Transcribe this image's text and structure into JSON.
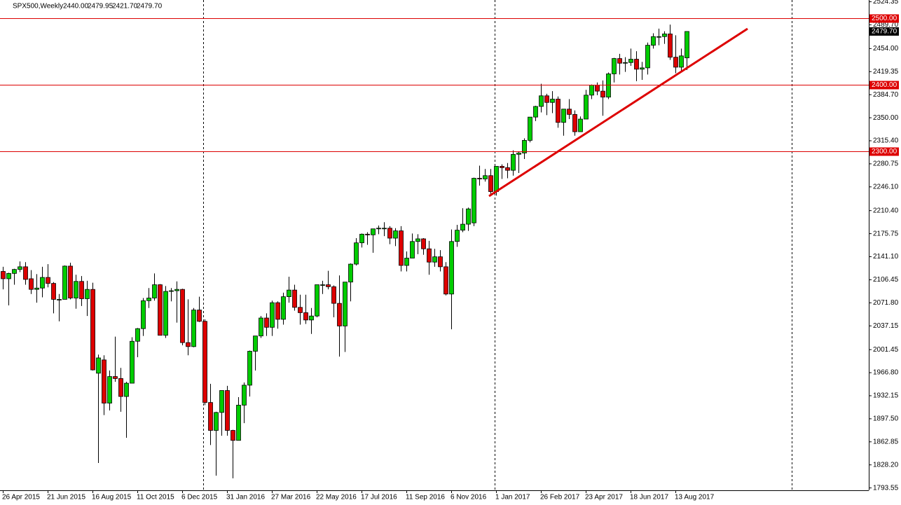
{
  "chart_data": {
    "type": "candlestick",
    "title": "SPX500,Weekly",
    "header_values": [
      "2440.00",
      "2479.95",
      "2421.70",
      "2479.70"
    ],
    "categories": [
      "26 Apr 2015",
      null,
      null,
      null,
      null,
      null,
      null,
      null,
      "21 Jun 2015",
      null,
      null,
      null,
      null,
      null,
      null,
      null,
      "16 Aug 2015",
      null,
      null,
      null,
      null,
      null,
      null,
      null,
      "11 Oct 2015",
      null,
      null,
      null,
      null,
      null,
      null,
      null,
      "6 Dec 2015",
      null,
      null,
      null,
      null,
      null,
      null,
      null,
      "31 Jan 2016",
      null,
      null,
      null,
      null,
      null,
      null,
      null,
      "27 Mar 2016",
      null,
      null,
      null,
      null,
      null,
      null,
      null,
      "22 May 2016",
      null,
      null,
      null,
      null,
      null,
      null,
      null,
      "17 Jul 2016",
      null,
      null,
      null,
      null,
      null,
      null,
      null,
      "11 Sep 2016",
      null,
      null,
      null,
      null,
      null,
      null,
      null,
      "6 Nov 2016",
      null,
      null,
      null,
      null,
      null,
      null,
      null,
      "1 Jan 2017",
      null,
      null,
      null,
      null,
      null,
      null,
      null,
      "26 Feb 2017",
      null,
      null,
      null,
      null,
      null,
      null,
      null,
      "23 Apr 2017",
      null,
      null,
      null,
      null,
      null,
      null,
      null,
      "18 Jun 2017",
      null,
      null,
      null,
      null,
      null,
      null,
      null,
      "13 Aug 2017",
      null,
      null
    ],
    "open": [
      2119,
      2108,
      2116,
      2122,
      2126,
      2108,
      2092,
      2094,
      2110,
      2101,
      2077,
      2077,
      2127,
      2079,
      2104,
      2078,
      2092,
      1966,
      1986,
      1921,
      1961,
      1958,
      1931,
      1951,
      2014,
      2033,
      2075,
      2079,
      2099,
      2023,
      2089,
      2090,
      2092,
      2012,
      2006,
      2061,
      2044,
      1922,
      1880,
      1907,
      1940,
      1880,
      1865,
      1918,
      1948,
      1999,
      2022,
      2049,
      2035,
      2072,
      2047,
      2081,
      2091,
      2065,
      2057,
      2046,
      2052,
      2099,
      2099,
      2096,
      2071,
      2037,
      2103,
      2130,
      2162,
      2175,
      2174,
      2183,
      2184,
      2184,
      2169,
      2180,
      2128,
      2139,
      2164,
      2168,
      2153,
      2133,
      2141,
      2126,
      2085,
      2164,
      2181,
      2190,
      2192,
      2259,
      2258,
      2263,
      2239,
      2277,
      2275,
      2271,
      2295,
      2297,
      2316,
      2351,
      2367,
      2383,
      2373,
      2378,
      2343,
      2363,
      2355,
      2329,
      2348,
      2384,
      2399,
      2390,
      2381,
      2416,
      2439,
      2432,
      2433,
      2438,
      2423,
      2425,
      2459,
      2472,
      2472,
      2476,
      2441,
      2426,
      2440
    ],
    "high": [
      2126,
      2117,
      2123,
      2134,
      2133,
      2121,
      2115,
      2126,
      2130,
      2103,
      2085,
      2128,
      2132,
      2114,
      2112,
      2105,
      2102,
      1994,
      1993,
      1970,
      2021,
      1974,
      1953,
      2020,
      2034,
      2079,
      2094,
      2116,
      2100,
      2097,
      2094,
      2104,
      2093,
      2077,
      2064,
      2081,
      2047,
      1950,
      1908,
      1940,
      1947,
      1881,
      1930,
      1952,
      2000,
      2022,
      2052,
      2056,
      2075,
      2074,
      2087,
      2111,
      2099,
      2084,
      2084,
      2064,
      2092,
      2105,
      2120,
      2098,
      2113,
      2103,
      2131,
      2169,
      2176,
      2178,
      2182,
      2188,
      2193,
      2187,
      2184,
      2187,
      2149,
      2176,
      2175,
      2169,
      2165,
      2153,
      2151,
      2133,
      2182,
      2189,
      2214,
      2215,
      2260,
      2278,
      2273,
      2273,
      2277,
      2280,
      2282,
      2301,
      2299,
      2319,
      2351,
      2368,
      2401,
      2386,
      2390,
      2382,
      2363,
      2378,
      2361,
      2352,
      2392,
      2400,
      2403,
      2406,
      2418,
      2440,
      2446,
      2441,
      2454,
      2450,
      2434,
      2463,
      2477,
      2484,
      2480,
      2490,
      2474,
      2454,
      2479.95
    ],
    "low": [
      2092,
      2068,
      2099,
      2118,
      2099,
      2085,
      2072,
      2080,
      2095,
      2056,
      2044,
      2077,
      2077,
      2063,
      2067,
      2052,
      1970,
      1831,
      1903,
      1910,
      1953,
      1908,
      1869,
      1951,
      1990,
      2022,
      2064,
      2075,
      2023,
      2019,
      2074,
      2042,
      2008,
      1993,
      2005,
      2043,
      1918,
      1858,
      1812,
      1872,
      1872,
      1808,
      1865,
      1891,
      1931,
      1970,
      2019,
      2022,
      2022,
      2033,
      2039,
      2072,
      2060,
      2039,
      2040,
      2025,
      2050,
      2085,
      2092,
      2050,
      1991,
      1998,
      2074,
      2128,
      2155,
      2159,
      2147,
      2175,
      2172,
      2160,
      2157,
      2119,
      2119,
      2139,
      2145,
      2144,
      2114,
      2126,
      2119,
      2083,
      2032,
      2156,
      2178,
      2180,
      2187,
      2248,
      2254,
      2233,
      2233,
      2258,
      2259,
      2263,
      2267,
      2288,
      2313,
      2345,
      2358,
      2354,
      2357,
      2335,
      2323,
      2348,
      2323,
      2329,
      2348,
      2378,
      2384,
      2353,
      2378,
      2403,
      2415,
      2419,
      2428,
      2405,
      2407,
      2415,
      2454,
      2459,
      2461,
      2437,
      2417,
      2418,
      2421.7
    ],
    "close": [
      2108,
      2116,
      2122,
      2126,
      2107,
      2092,
      2094,
      2110,
      2101,
      2077,
      2077,
      2127,
      2079,
      2104,
      2078,
      2092,
      1971,
      1989,
      1921,
      1961,
      1958,
      1931,
      1951,
      2014,
      2033,
      2075,
      2079,
      2099,
      2023,
      2089,
      2090,
      2092,
      2012,
      2006,
      2061,
      2044,
      1922,
      1880,
      1907,
      1940,
      1880,
      1865,
      1918,
      1948,
      1999,
      2022,
      2049,
      2035,
      2072,
      2047,
      2081,
      2091,
      2065,
      2057,
      2046,
      2052,
      2099,
      2099,
      2096,
      2071,
      2037,
      2103,
      2130,
      2162,
      2175,
      2174,
      2183,
      2184,
      2184,
      2169,
      2180,
      2128,
      2139,
      2164,
      2168,
      2153,
      2133,
      2141,
      2126,
      2085,
      2164,
      2181,
      2190,
      2213,
      2259,
      2258,
      2263,
      2239,
      2277,
      2275,
      2271,
      2295,
      2297,
      2316,
      2351,
      2367,
      2383,
      2373,
      2378,
      2343,
      2363,
      2355,
      2329,
      2348,
      2384,
      2399,
      2390,
      2381,
      2416,
      2439,
      2432,
      2433,
      2438,
      2423,
      2425,
      2459,
      2472,
      2472,
      2476,
      2441,
      2426,
      2443,
      2479.7
    ],
    "up_color": "#00cc00",
    "down_color": "#dd0000",
    "ylim": [
      1790,
      2527
    ],
    "yticks": [
      2524.35,
      {
        "value": 2489.7,
        "label": "2489.70"
      },
      {
        "value": 2454,
        "label": "2454.00"
      },
      2419.35,
      {
        "value": 2384.7,
        "label": "2384.70"
      },
      {
        "value": 2350,
        "label": "2350.00"
      },
      {
        "value": 2315.4,
        "label": "2315.40"
      },
      2280.75,
      {
        "value": 2246.1,
        "label": "2246.10"
      },
      {
        "value": 2210.4,
        "label": "2210.40"
      },
      2175.75,
      {
        "value": 2141.1,
        "label": "2141.10"
      },
      2106.45,
      {
        "value": 2071.8,
        "label": "2071.80"
      },
      2037.15,
      2001.45,
      {
        "value": 1966.8,
        "label": "1966.80"
      },
      1932.15,
      {
        "value": 1897.5,
        "label": "1897.50"
      },
      1862.85,
      {
        "value": 1828.2,
        "label": "1828.20"
      },
      1793.55
    ],
    "hlines": [
      {
        "value": 2500,
        "label": "2500.00"
      },
      {
        "value": 2400,
        "label": "2400.00"
      },
      {
        "value": 2300,
        "label": "2300.00"
      }
    ],
    "hline_color": "#dd0000",
    "last_price": {
      "value": 2479.7,
      "label": "2479.70"
    }
  }
}
